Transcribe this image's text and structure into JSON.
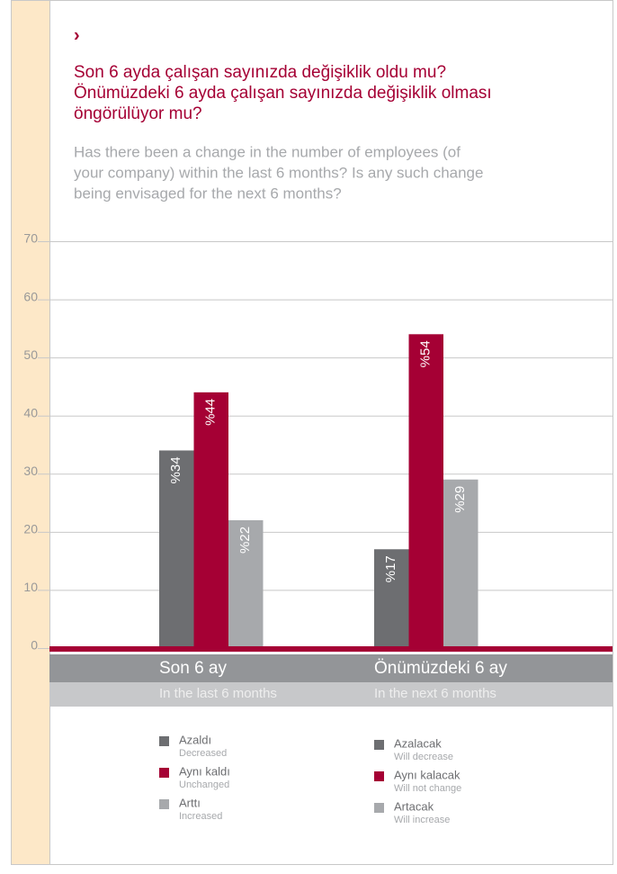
{
  "chart_data": {
    "type": "bar",
    "marker": "›",
    "title": [
      "Son 6 ayda çalışan sayınızda değişiklik oldu mu?",
      "Önümüzdeki 6 ayda çalışan sayınızda değişiklik olması",
      "öngörülüyor mu?"
    ],
    "subtitle": [
      "Has there been a change in the number of employees (of",
      "your company) within the last 6 months? Is any such change",
      "being envisaged for the next 6 months?"
    ],
    "categories": [
      "Son 6 ay",
      "Önümüzdeki 6 ay"
    ],
    "category_notes": [
      "In the last 6 months",
      "In the next 6 months"
    ],
    "series": [
      {
        "name": "Azaldı",
        "note": "Decreased",
        "next_name": "Azalacak",
        "next_note": "Will decrease",
        "color": "#6d6e71",
        "values": [
          34,
          17
        ],
        "value_labels": [
          "%34",
          "%17"
        ]
      },
      {
        "name": "Aynı kaldı",
        "note": "Unchanged",
        "next_name": "Aynı kalacak",
        "next_note": "Will not change",
        "color": "#a50034",
        "values": [
          44,
          54
        ],
        "value_labels": [
          "%44",
          "%54"
        ]
      },
      {
        "name": "Arttı",
        "note": "Increased",
        "next_name": "Artacak",
        "next_note": "Will increase",
        "color": "#a7a9ac",
        "values": [
          22,
          29
        ],
        "value_labels": [
          "%22",
          "%29"
        ]
      }
    ],
    "ylim": [
      0,
      70
    ],
    "yticks": [
      0,
      10,
      20,
      30,
      40,
      50,
      60,
      70
    ],
    "grid": true
  }
}
